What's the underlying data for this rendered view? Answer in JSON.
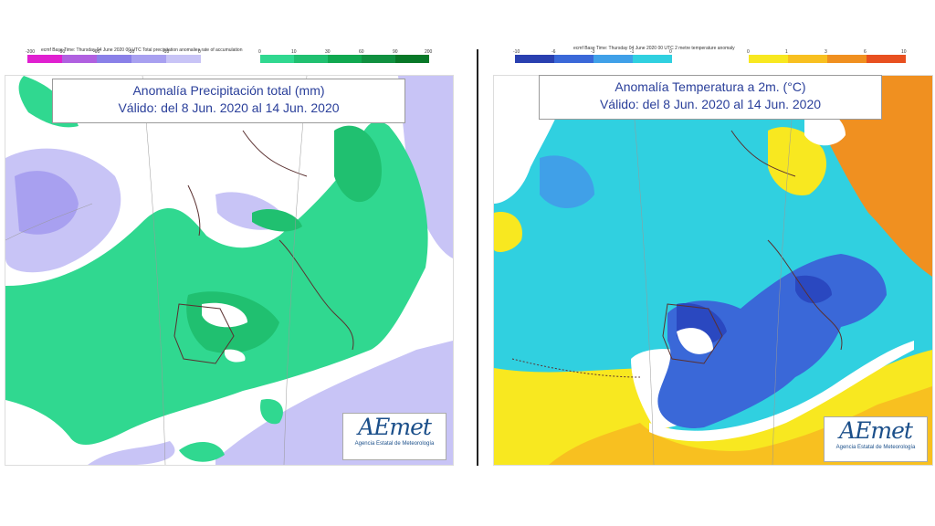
{
  "left_panel": {
    "header_text": "ecmf  Base Time: Thursday 04 June 2020 00 UTC Total precipitation anomalies rate of accumulation",
    "title_line1": "Anomalía Precipitación total (mm)",
    "title_line2": "Válido: del 8 Jun. 2020 al 14 Jun. 2020",
    "legend_negative_labels": [
      "-200",
      "-90",
      "-60",
      "-30",
      "-10",
      "0"
    ],
    "legend_positive_labels": [
      "0",
      "10",
      "30",
      "60",
      "90",
      "200"
    ],
    "legend_negative_colors": [
      "#e020d0",
      "#b060e0",
      "#8a80e8",
      "#a8a0f0",
      "#c8c4f6"
    ],
    "legend_positive_colors": [
      "#30d890",
      "#20c070",
      "#10a850",
      "#109040",
      "#087828"
    ],
    "logo_text": "AEmet",
    "logo_sub": "Agencia Estatal de Meteorología"
  },
  "right_panel": {
    "header_text": "ecmf  Base Time: Thursday 04 June 2020 00 UTC 2 metre temperature anomaly",
    "title_line1": "Anomalía Temperatura a 2m. (°C)",
    "title_line2": "Válido: del 8 Jun. 2020 al 14 Jun. 2020",
    "legend_negative_labels": [
      "-10",
      "-6",
      "-3",
      "-1",
      "0"
    ],
    "legend_positive_labels": [
      "0",
      "1",
      "3",
      "6",
      "10"
    ],
    "legend_negative_colors": [
      "#2a40b0",
      "#3a68d8",
      "#40a0e8",
      "#30d0e0"
    ],
    "legend_positive_colors": [
      "#f8e820",
      "#f8c020",
      "#f09020",
      "#e85020"
    ],
    "logo_text": "AEmet",
    "logo_sub": "Agencia Estatal de Meteorología"
  }
}
